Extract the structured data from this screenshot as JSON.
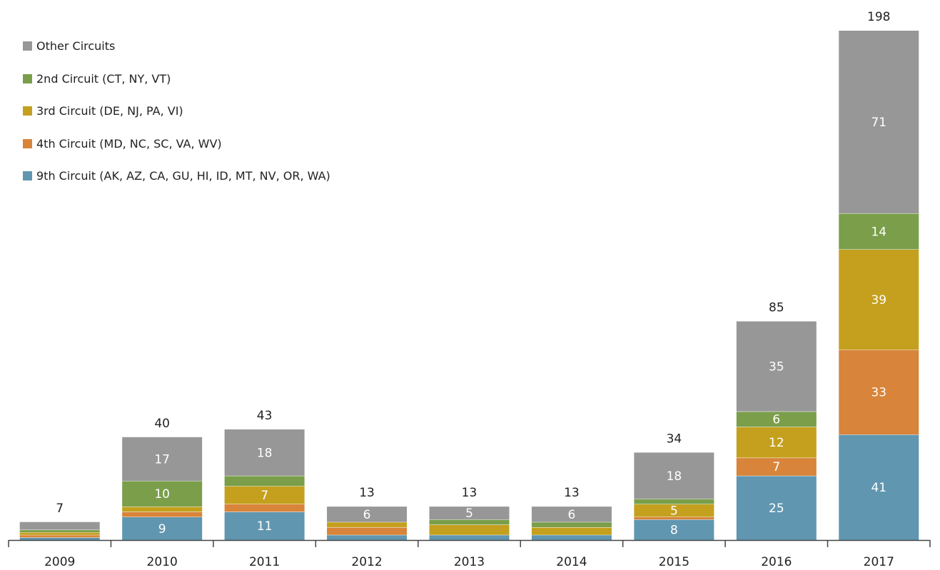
{
  "chart_data": {
    "type": "bar",
    "stacked": true,
    "categories": [
      "2009",
      "2010",
      "2011",
      "2012",
      "2013",
      "2014",
      "2015",
      "2016",
      "2017"
    ],
    "series": [
      {
        "name": "9th Circuit (AK, AZ, CA, GU, HI, ID, MT, NV, OR, WA)",
        "color": "#6096b0",
        "values": [
          1,
          9,
          11,
          2,
          2,
          2,
          8,
          25,
          41
        ],
        "labels": [
          "",
          "9",
          "11",
          "",
          "",
          "",
          "8",
          "25",
          "41"
        ]
      },
      {
        "name": "4th Circuit (MD, NC, SC, VA, WV)",
        "color": "#d8843a",
        "values": [
          1,
          2,
          3,
          3,
          0,
          0,
          1,
          7,
          33
        ],
        "labels": [
          "",
          "",
          "",
          "",
          "",
          "",
          "",
          "7",
          "33"
        ]
      },
      {
        "name": "3rd Circuit (DE, NJ, PA, VI)",
        "color": "#c4a01e",
        "values": [
          1,
          2,
          7,
          2,
          4,
          3,
          5,
          12,
          39
        ],
        "labels": [
          "",
          "",
          "7",
          "",
          "",
          "",
          "5",
          "12",
          "39"
        ]
      },
      {
        "name": "2nd Circuit (CT, NY, VT)",
        "color": "#7a9e4a",
        "values": [
          1,
          10,
          4,
          0,
          2,
          2,
          2,
          6,
          14
        ],
        "labels": [
          "",
          "10",
          "",
          "",
          "",
          "",
          "",
          "6",
          "14"
        ]
      },
      {
        "name": "Other Circuits",
        "color": "#979797",
        "values": [
          3,
          17,
          18,
          6,
          5,
          6,
          18,
          35,
          71
        ],
        "labels": [
          "",
          "17",
          "18",
          "6",
          "5",
          "6",
          "18",
          "35",
          "71"
        ]
      }
    ],
    "totals": [
      "7",
      "40",
      "43",
      "13",
      "13",
      "13",
      "34",
      "85",
      "198"
    ],
    "legend_order": [
      "Other Circuits",
      "2nd Circuit (CT, NY, VT)",
      "3rd Circuit (DE, NJ, PA, VI)",
      "4th Circuit (MD, NC, SC, VA, WV)",
      "9th Circuit (AK, AZ, CA, GU, HI, ID, MT, NV, OR, WA)"
    ],
    "legend_position": "top-left",
    "ylim": [
      0,
      198
    ],
    "grid": false,
    "y_axis_visible": false
  }
}
